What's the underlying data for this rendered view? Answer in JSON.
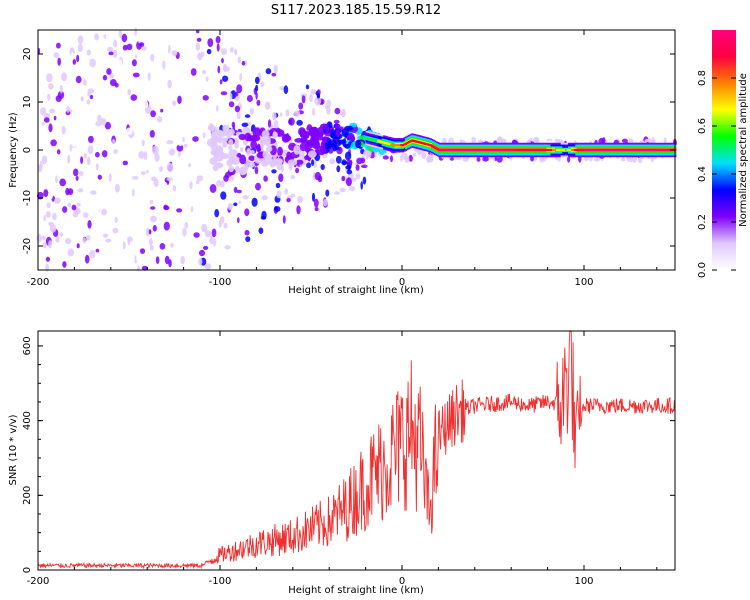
{
  "title": "S117.2023.185.15.59.R12",
  "chart_data": [
    {
      "type": "heatmap",
      "xlabel": "Height of straight line (km)",
      "ylabel": "Frequency (Hz)",
      "xlim": [
        -200,
        150
      ],
      "ylim": [
        -25,
        25
      ],
      "xticks": [
        -200,
        -100,
        0,
        100
      ],
      "yticks": [
        -20,
        -10,
        0,
        10,
        20
      ],
      "colorbar": {
        "label": "Normalized spectral amplitude",
        "range": [
          0,
          1
        ],
        "ticks": [
          "0.0",
          "0.2",
          "0.4",
          "0.6",
          "0.8"
        ],
        "colors": [
          "#ffffff",
          "#e0c8ff",
          "#7f00ff",
          "#0000ff",
          "#00e0ff",
          "#00ff00",
          "#ffff00",
          "#ff8000",
          "#ff0040",
          "#ff0080"
        ]
      },
      "ridge": {
        "x": [
          -100,
          -60,
          -40,
          -25,
          -15,
          -5,
          0,
          5,
          15,
          20,
          40,
          60,
          80,
          85,
          90,
          95,
          100,
          150
        ],
        "frequency": [
          0,
          0,
          3,
          3,
          2,
          1,
          1,
          2,
          1,
          0,
          0,
          0,
          0,
          0,
          0,
          0,
          0,
          0
        ],
        "amplitude": [
          0.15,
          0.2,
          0.3,
          0.45,
          0.6,
          0.75,
          0.85,
          0.9,
          0.9,
          0.95,
          0.95,
          0.95,
          0.9,
          0.7,
          0.6,
          0.9,
          0.95,
          0.95
        ]
      }
    },
    {
      "type": "line",
      "xlabel": "Height of straight line (km)",
      "ylabel": "SNR (10 * v/v)",
      "xlim": [
        -200,
        150
      ],
      "ylim": [
        0,
        640
      ],
      "xticks": [
        -200,
        -100,
        0,
        100
      ],
      "yticks": [
        0,
        200,
        400,
        600
      ],
      "color": "#f03030",
      "series": [
        {
          "x": [
            -200,
            -150,
            -110,
            -100,
            -80,
            -60,
            -40,
            -30,
            -20,
            -10,
            0,
            5,
            10,
            15,
            20,
            30,
            40,
            60,
            70,
            80,
            88,
            90,
            93,
            95,
            100,
            120,
            150
          ],
          "y": [
            12,
            12,
            12,
            40,
            70,
            90,
            130,
            170,
            230,
            280,
            340,
            370,
            330,
            150,
            360,
            420,
            440,
            450,
            440,
            450,
            445,
            500,
            600,
            330,
            440,
            440,
            440
          ]
        }
      ]
    }
  ]
}
